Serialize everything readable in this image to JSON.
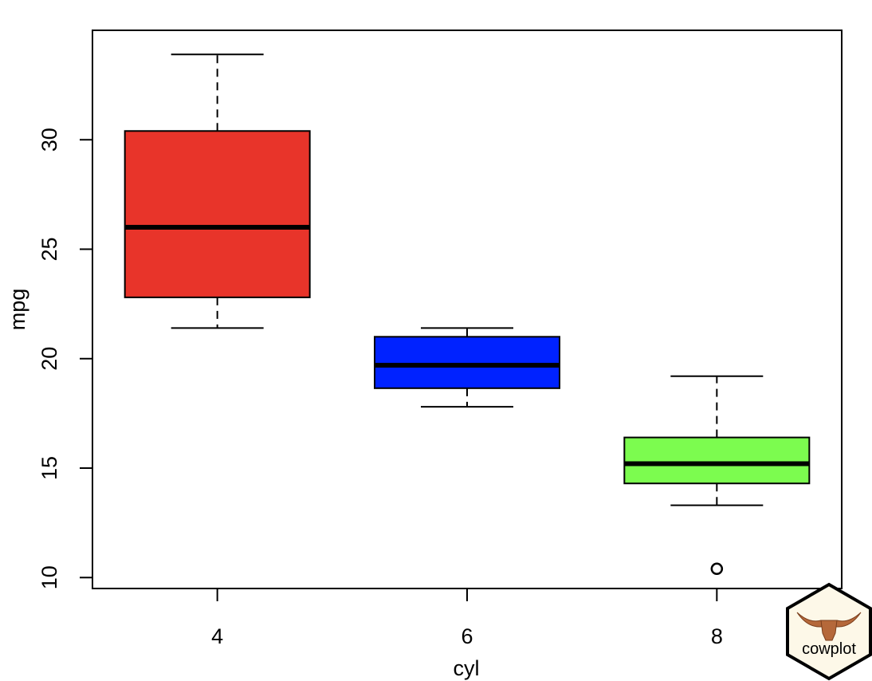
{
  "chart_data": {
    "type": "boxplot",
    "xlabel": "cyl",
    "ylabel": "mpg",
    "ylim": [
      9.5,
      35.0
    ],
    "y_ticks": [
      10,
      15,
      20,
      25,
      30
    ],
    "categories": [
      "4",
      "6",
      "8"
    ],
    "boxes": [
      {
        "category": "4",
        "whisker_low": 21.4,
        "q1": 22.8,
        "median": 26.0,
        "q3": 30.4,
        "whisker_high": 33.9,
        "outliers": [],
        "color": "#e8342a"
      },
      {
        "category": "6",
        "whisker_low": 17.8,
        "q1": 18.65,
        "median": 19.7,
        "q3": 21.0,
        "whisker_high": 21.4,
        "outliers": [],
        "color": "#0022ff"
      },
      {
        "category": "8",
        "whisker_low": 13.3,
        "q1": 14.3,
        "median": 15.2,
        "q3": 16.4,
        "whisker_high": 19.2,
        "outliers": [
          10.4
        ],
        "color": "#7cfc4f"
      }
    ]
  },
  "logo": {
    "text": "cowplot"
  }
}
